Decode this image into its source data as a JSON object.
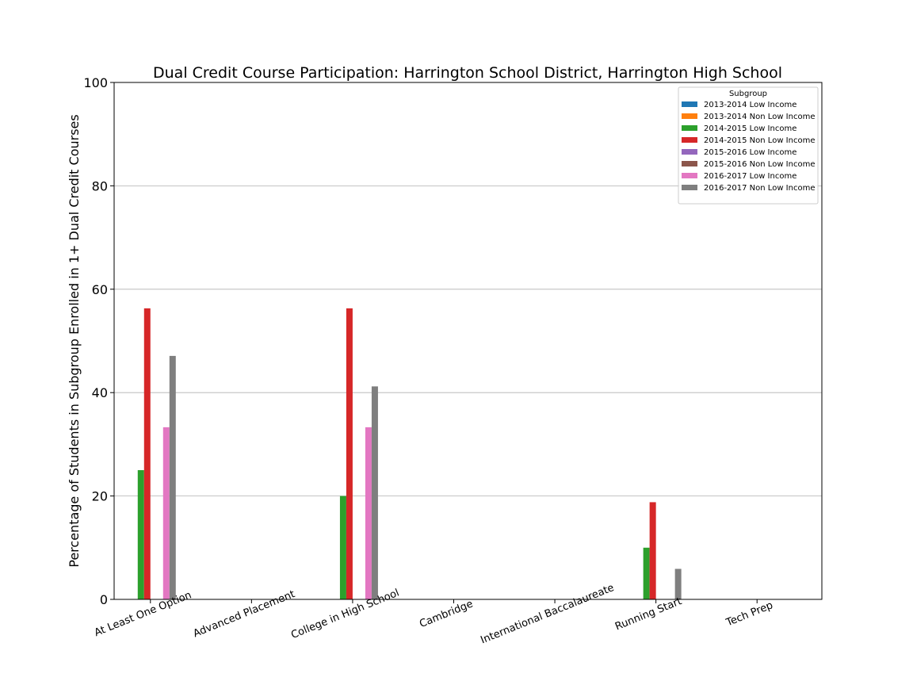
{
  "chart_data": {
    "type": "bar",
    "title": "Dual Credit Course Participation: Harrington School District, Harrington High School",
    "ylabel": "Percentage of Students in Subgroup Enrolled in 1+ Dual Credit Courses",
    "xlabel": "",
    "ylim": [
      0,
      100
    ],
    "yticks": [
      0,
      20,
      40,
      60,
      80,
      100
    ],
    "grid": "horizontal",
    "legend": {
      "title": "Subgroup",
      "placement": "top-right"
    },
    "categories": [
      "At Least One Option",
      "Advanced Placement",
      "College in High School",
      "Cambridge",
      "International Baccalaureate",
      "Running Start",
      "Tech Prep"
    ],
    "series": [
      {
        "name": "2013-2014 Low Income",
        "color": "#1f77b4",
        "values": [
          0,
          0,
          0,
          0,
          0,
          0,
          0
        ]
      },
      {
        "name": "2013-2014 Non Low Income",
        "color": "#ff7f0e",
        "values": [
          0,
          0,
          0,
          0,
          0,
          0,
          0
        ]
      },
      {
        "name": "2014-2015 Low Income",
        "color": "#2ca02c",
        "values": [
          25.0,
          0,
          20.0,
          0,
          0,
          10.0,
          0
        ]
      },
      {
        "name": "2014-2015 Non Low Income",
        "color": "#d62728",
        "values": [
          56.3,
          0,
          56.3,
          0,
          0,
          18.8,
          0
        ]
      },
      {
        "name": "2015-2016 Low Income",
        "color": "#9467bd",
        "values": [
          0,
          0,
          0,
          0,
          0,
          0,
          0
        ]
      },
      {
        "name": "2015-2016 Non Low Income",
        "color": "#8c564b",
        "values": [
          0,
          0,
          0,
          0,
          0,
          0,
          0
        ]
      },
      {
        "name": "2016-2017 Low Income",
        "color": "#e377c2",
        "values": [
          33.3,
          0,
          33.3,
          0,
          0,
          0,
          0
        ]
      },
      {
        "name": "2016-2017 Non Low Income",
        "color": "#7f7f7f",
        "values": [
          47.1,
          0,
          41.2,
          0,
          0,
          5.9,
          0
        ]
      }
    ]
  }
}
